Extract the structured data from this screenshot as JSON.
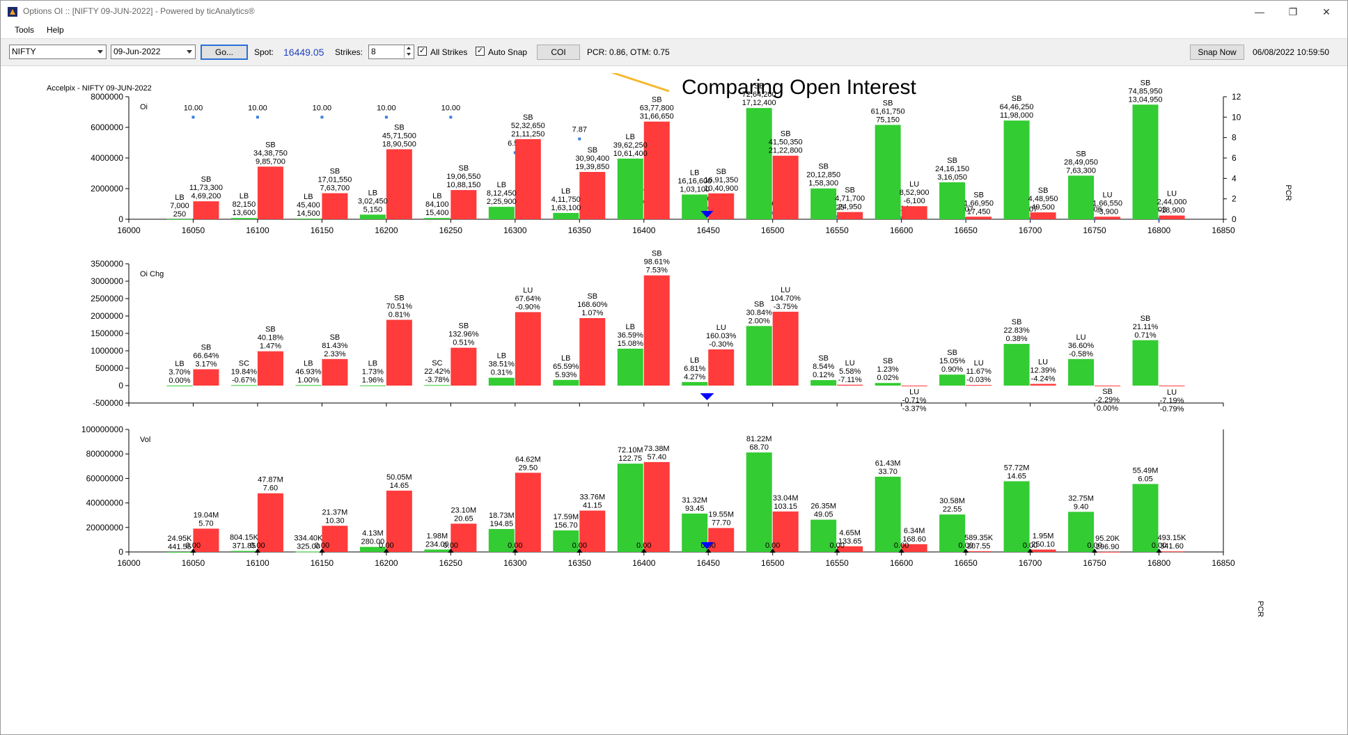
{
  "window": {
    "title": "Options OI :: [NIFTY 09-JUN-2022] - Powered by ticAnalytics®",
    "minimize": "—",
    "restore": "❐",
    "close": "✕"
  },
  "menu": {
    "items": [
      "Tools",
      "Help"
    ]
  },
  "toolbar": {
    "symbol": "NIFTY",
    "expiry": "09-Jun-2022",
    "go_label": "Go...",
    "spot_label": "Spot:",
    "spot_value": "16449.05",
    "strikes_label": "Strikes:",
    "strikes_value": "8",
    "all_strikes_label": "All Strikes",
    "all_strikes_checked": true,
    "auto_snap_label": "Auto Snap",
    "auto_snap_checked": true,
    "coi_label": "COI",
    "pcr_text": "PCR: 0.86,  OTM: 0.75",
    "snap_now_label": "Snap Now",
    "timestamp": "06/08/2022 10:59:50"
  },
  "annotation": {
    "text": "Comparing Open Interest",
    "arrow_color": "#f5b82e"
  },
  "chart_header": "Accelpix - NIFTY 09-JUN-2022",
  "colors": {
    "call": "#33cc33",
    "put": "#ff3b3b",
    "pcr": "#3b7fe0",
    "spot": "#0000ff",
    "text": "#000000",
    "pcr_label": "#0000cc"
  },
  "chart_data": [
    {
      "type": "bar",
      "name": "Oi",
      "ylabel": "Oi",
      "y2label": "PCR",
      "ylim": [
        0,
        8000000
      ],
      "yticks": [
        0,
        2000000,
        4000000,
        6000000,
        8000000
      ],
      "y2lim": [
        0,
        12
      ],
      "y2ticks": [
        0,
        2,
        4,
        6,
        8,
        10,
        12
      ],
      "xlim": [
        16000,
        16850
      ],
      "xticks": [
        16000,
        16050,
        16100,
        16150,
        16200,
        16250,
        16300,
        16350,
        16400,
        16450,
        16500,
        16550,
        16600,
        16650,
        16700,
        16750,
        16800,
        16850
      ],
      "spot": 16449.05,
      "strikes": [
        16050,
        16100,
        16150,
        16200,
        16250,
        16300,
        16350,
        16400,
        16450,
        16500,
        16550,
        16600,
        16650,
        16700,
        16750,
        16800
      ],
      "call_values": [
        7000,
        82150,
        45400,
        302450,
        84100,
        812450,
        411750,
        3962250,
        1616600,
        7264200,
        2012850,
        6161750,
        2416150,
        6446250,
        2849050,
        7485950
      ],
      "put_values": [
        1173300,
        3438750,
        1701550,
        4571500,
        1906550,
        5232650,
        3090400,
        6377800,
        1691350,
        4150350,
        471700,
        852900,
        166950,
        448950,
        166550,
        244000
      ],
      "pcr": [
        10.0,
        10.0,
        10.0,
        10.0,
        10.0,
        6.52,
        7.87,
        1.72,
        1.09,
        0.61,
        0.25,
        0.14,
        0.07,
        0.07,
        0.06,
        0.03
      ],
      "call_labels": [
        [
          "LB",
          "7,000",
          "250"
        ],
        [
          "LB",
          "82,150",
          "13,600"
        ],
        [
          "LB",
          "45,400",
          "14,500"
        ],
        [
          "LB",
          "3,02,450",
          "5,150"
        ],
        [
          "LB",
          "84,100",
          "15,400"
        ],
        [
          "LB",
          "8,12,450",
          "2,25,900"
        ],
        [
          "LB",
          "4,11,750",
          "1,63,100"
        ],
        [
          "LB",
          "39,62,250",
          "10,61,400"
        ],
        [
          "LB",
          "16,16,600",
          "1,03,100"
        ],
        [
          "SB",
          "72,64,200",
          "17,12,400"
        ],
        [
          "SB",
          "20,12,850",
          "1,58,300"
        ],
        [
          "SB",
          "61,61,750",
          "75,150"
        ],
        [
          "SB",
          "24,16,150",
          "3,16,050"
        ],
        [
          "SB",
          "64,46,250",
          "11,98,000"
        ],
        [
          "SB",
          "28,49,050",
          "7,63,300"
        ],
        [
          "SB",
          "74,85,950",
          "13,04,950"
        ]
      ],
      "put_labels": [
        [
          "SB",
          "11,73,300",
          "4,69,200"
        ],
        [
          "SB",
          "34,38,750",
          "9,85,700"
        ],
        [
          "SB",
          "17,01,550",
          "7,63,700"
        ],
        [
          "SB",
          "45,71,500",
          "18,90,500"
        ],
        [
          "SB",
          "19,06,550",
          "10,88,150"
        ],
        [
          "SB",
          "52,32,650",
          "21,11,250"
        ],
        [
          "SB",
          "30,90,400",
          "19,39,850"
        ],
        [
          "SB",
          "63,77,800",
          "31,66,650"
        ],
        [
          "SB",
          "16,91,350",
          "10,40,900"
        ],
        [
          "SB",
          "41,50,350",
          "21,22,800"
        ],
        [
          "SB",
          "4,71,700",
          "24,950"
        ],
        [
          "LU",
          "8,52,900",
          "-6,100"
        ],
        [
          "SB",
          "1,66,950",
          "17,450"
        ],
        [
          "SB",
          "4,48,950",
          "49,500"
        ],
        [
          "LU",
          "1,66,550",
          "-3,900"
        ],
        [
          "LU",
          "2,44,000",
          "-18,900"
        ]
      ]
    },
    {
      "type": "bar",
      "name": "Oi Chg",
      "ylabel": "Oi Chg",
      "ylim": [
        -500000,
        3500000
      ],
      "yticks": [
        -500000,
        0,
        500000,
        1000000,
        1500000,
        2000000,
        2500000,
        3000000,
        3500000
      ],
      "xlim": [
        16000,
        16850
      ],
      "strikes": [
        16050,
        16100,
        16150,
        16200,
        16250,
        16300,
        16350,
        16400,
        16450,
        16500,
        16550,
        16600,
        16650,
        16700,
        16750,
        16800
      ],
      "call_values": [
        250,
        13600,
        14500,
        5150,
        15400,
        225900,
        163100,
        1061400,
        103100,
        1712400,
        158300,
        75150,
        316050,
        1198000,
        763300,
        1304950
      ],
      "put_values": [
        469200,
        985700,
        763700,
        1890500,
        1088150,
        2111250,
        1939850,
        3166650,
        1040900,
        2122800,
        24950,
        -6100,
        17450,
        49500,
        -3900,
        -18900
      ],
      "call_labels": [
        [
          "LB",
          "3.70%",
          "0.00%"
        ],
        [
          "SC",
          "19.84%",
          "-0.67%"
        ],
        [
          "LB",
          "46.93%",
          "1.00%"
        ],
        [
          "LB",
          "1.73%",
          "1.96%"
        ],
        [
          "SC",
          "22.42%",
          "-3.78%"
        ],
        [
          "LB",
          "38.51%",
          "0.31%"
        ],
        [
          "LB",
          "65.59%",
          "5.93%"
        ],
        [
          "LB",
          "36.59%",
          "15.08%"
        ],
        [
          "LB",
          "6.81%",
          "4.27%"
        ],
        [
          "SB",
          "30.84%",
          "2.00%"
        ],
        [
          "SB",
          "8.54%",
          "0.12%"
        ],
        [
          "SB",
          "1.23%",
          "0.02%"
        ],
        [
          "SB",
          "15.05%",
          "0.90%"
        ],
        [
          "SB",
          "22.83%",
          "0.38%"
        ],
        [
          "LU",
          "36.60%",
          "-0.58%"
        ],
        [
          "SB",
          "21.11%",
          "0.71%"
        ]
      ],
      "put_labels": [
        [
          "SB",
          "66.64%",
          "3.17%"
        ],
        [
          "SB",
          "40.18%",
          "1.47%"
        ],
        [
          "SB",
          "81.43%",
          "2.33%"
        ],
        [
          "SB",
          "70.51%",
          "0.81%"
        ],
        [
          "SB",
          "132.96%",
          "0.51%"
        ],
        [
          "LU",
          "67.64%",
          "-0.90%"
        ],
        [
          "SB",
          "168.60%",
          "1.07%"
        ],
        [
          "SB",
          "98.61%",
          "7.53%"
        ],
        [
          "LU",
          "160.03%",
          "-0.30%"
        ],
        [
          "LU",
          "104.70%",
          "-3.75%"
        ],
        [
          "LU",
          "5.58%",
          "-7.11%"
        ],
        [
          "LU",
          "-0.71%",
          "-3.37%"
        ],
        [
          "LU",
          "11.67%",
          "-0.03%"
        ],
        [
          "LU",
          "12.39%",
          "-4.24%"
        ],
        [
          "SB",
          "-2.29%",
          "0.00%"
        ],
        [
          "LU",
          "-7.19%",
          "-0.79%"
        ]
      ]
    },
    {
      "type": "bar",
      "name": "Vol",
      "ylabel": "Vol",
      "y2label": "PCR",
      "ylim": [
        0,
        100000000
      ],
      "yticks": [
        0,
        20000000,
        40000000,
        60000000,
        80000000,
        100000000
      ],
      "xlim": [
        16000,
        16850
      ],
      "strikes": [
        16050,
        16100,
        16150,
        16200,
        16250,
        16300,
        16350,
        16400,
        16450,
        16500,
        16550,
        16600,
        16650,
        16700,
        16750,
        16800
      ],
      "call_values": [
        24950,
        804150,
        334400,
        4130000,
        1980000,
        18730000,
        17590000,
        72100000,
        31320000,
        81220000,
        26350000,
        61430000,
        30580000,
        57720000,
        32750000,
        55490000
      ],
      "put_values": [
        19040000,
        47870000,
        21370000,
        50050000,
        23100000,
        64620000,
        33760000,
        73380000,
        19550000,
        33040000,
        4650000,
        6340000,
        589350,
        1950000,
        95200,
        493150
      ],
      "call_labels": [
        [
          "24.95K",
          "441.55"
        ],
        [
          "804.15K",
          "371.85"
        ],
        [
          "334.40K",
          "325.00"
        ],
        [
          "4.13M",
          "280.00"
        ],
        [
          "1.98M",
          "234.00"
        ],
        [
          "18.73M",
          "194.85"
        ],
        [
          "17.59M",
          "156.70"
        ],
        [
          "72.10M",
          "122.75"
        ],
        [
          "31.32M",
          "93.45"
        ],
        [
          "81.22M",
          "68.70"
        ],
        [
          "26.35M",
          "49.05"
        ],
        [
          "61.43M",
          "33.70"
        ],
        [
          "30.58M",
          "22.55"
        ],
        [
          "57.72M",
          "14.65"
        ],
        [
          "32.75M",
          "9.40"
        ],
        [
          "55.49M",
          "6.05"
        ]
      ],
      "put_labels": [
        [
          "19.04M",
          "5.70"
        ],
        [
          "47.87M",
          "7.60"
        ],
        [
          "21.37M",
          "10.30"
        ],
        [
          "50.05M",
          "14.65"
        ],
        [
          "23.10M",
          "20.65"
        ],
        [
          "64.62M",
          "29.50"
        ],
        [
          "33.76M",
          "41.15"
        ],
        [
          "73.38M",
          "57.40"
        ],
        [
          "19.55M",
          "77.70"
        ],
        [
          "33.04M",
          "103.15"
        ],
        [
          "4.65M",
          "133.65"
        ],
        [
          "6.34M",
          "168.60"
        ],
        [
          "589.35K",
          "207.55"
        ],
        [
          "1.95M",
          "250.10"
        ],
        [
          "95.20K",
          "296.90"
        ],
        [
          "493.15K",
          "341.60"
        ]
      ],
      "pcr_labels": [
        "0.00",
        "0.00",
        "0.00",
        "0.00",
        "0.00",
        "0.00",
        "0.00",
        "0.00",
        "0.00",
        "0.00",
        "0.00",
        "0.00",
        "0.00",
        "0.00",
        "0.00",
        "0.00"
      ]
    }
  ]
}
